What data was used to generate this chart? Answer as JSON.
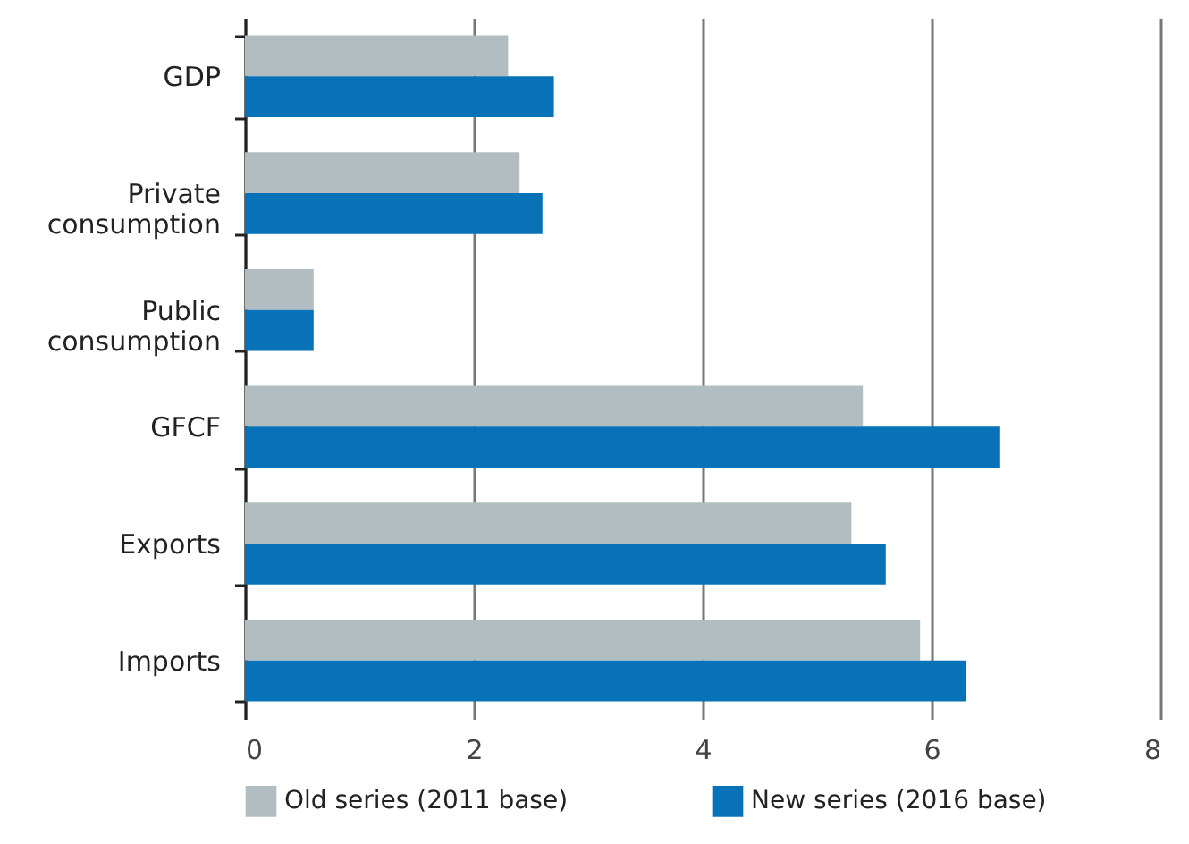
{
  "chart_data": {
    "type": "bar",
    "orientation": "horizontal",
    "categories": [
      "GDP",
      "Private consumption",
      "Public consumption",
      "GFCF",
      "Exports",
      "Imports"
    ],
    "series": [
      {
        "name": "Old series (2011 base)",
        "color": "#b1bdc1",
        "values": [
          2.3,
          2.4,
          0.6,
          5.4,
          5.3,
          5.9
        ]
      },
      {
        "name": "New series (2016 base)",
        "color": "#0872b9",
        "values": [
          2.7,
          2.6,
          0.6,
          6.6,
          5.6,
          6.3
        ]
      }
    ],
    "xlim": [
      0,
      8
    ],
    "xticks": [
      0,
      2,
      4,
      6,
      8
    ],
    "grid": "x",
    "legend": "bottom"
  }
}
